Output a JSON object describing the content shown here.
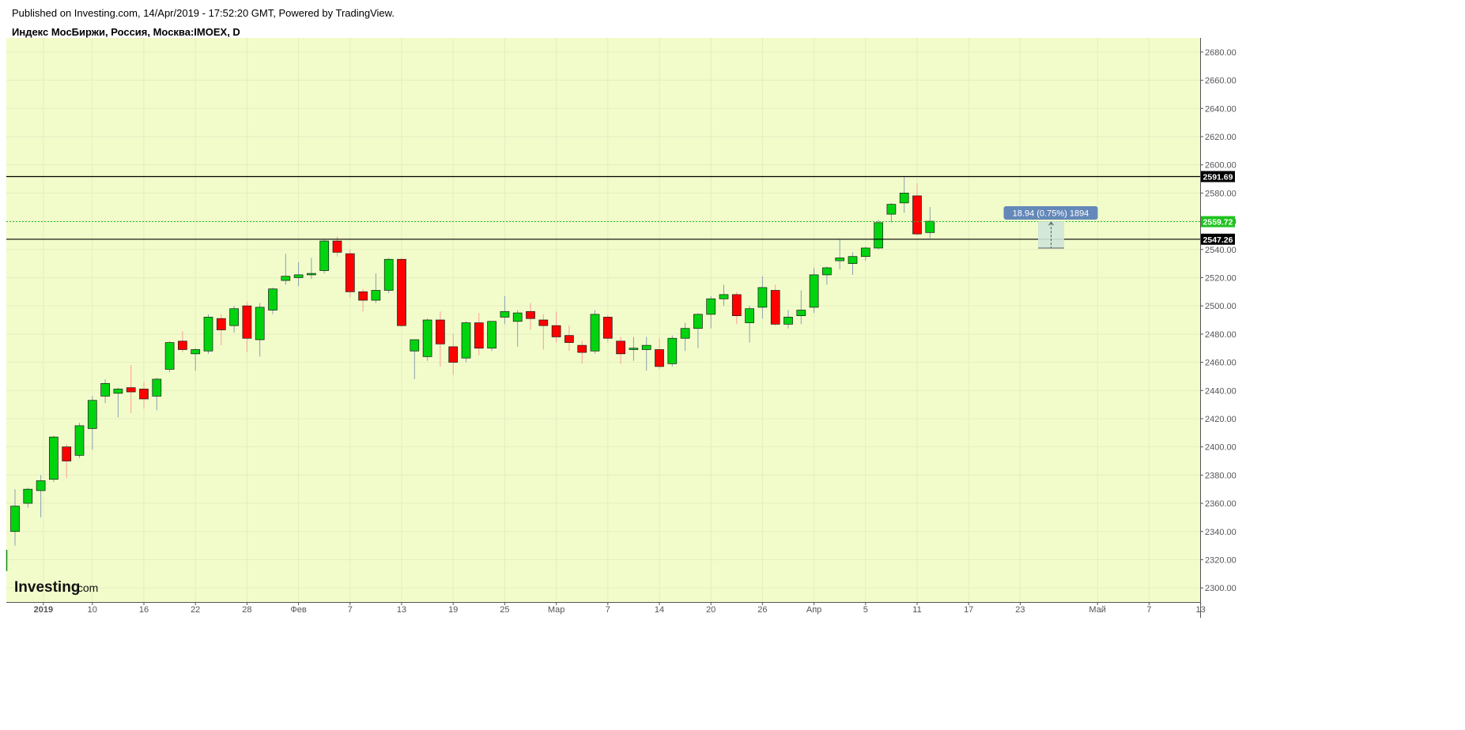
{
  "header": {
    "published": "Published on Investing.com, 14/Apr/2019 - 17:52:20 GMT, Powered by TradingView.",
    "instrument": "Индекс МосБиржи, Россия, Москва:IMOEX, D"
  },
  "logo": {
    "word": "Investing",
    "domain": ".com"
  },
  "colors": {
    "plot_bg": "#f2fccb",
    "up": "#00d40f",
    "down": "#ff0000",
    "wick_up": "#8aa0b0",
    "wick_down": "#ff9a9a",
    "last_price": "#1fc21f",
    "level": "#000000",
    "measure_box": "#cfe6d8",
    "measure_label": "#6488b8"
  },
  "chart_data": {
    "type": "candlestick",
    "ylim": [
      2290,
      2690
    ],
    "y_ticks": [
      2300,
      2320,
      2340,
      2360,
      2380,
      2400,
      2420,
      2440,
      2460,
      2480,
      2500,
      2520,
      2540,
      2560,
      2580,
      2600,
      2620,
      2640,
      2660,
      2680
    ],
    "x_labels": [
      {
        "label": "2019",
        "bar": 2.2,
        "bold": true
      },
      {
        "label": "10",
        "bar": 6
      },
      {
        "label": "16",
        "bar": 10
      },
      {
        "label": "22",
        "bar": 14
      },
      {
        "label": "28",
        "bar": 18
      },
      {
        "label": "Фев",
        "bar": 22
      },
      {
        "label": "7",
        "bar": 26
      },
      {
        "label": "13",
        "bar": 30
      },
      {
        "label": "19",
        "bar": 34
      },
      {
        "label": "25",
        "bar": 38
      },
      {
        "label": "Мар",
        "bar": 42
      },
      {
        "label": "7",
        "bar": 46
      },
      {
        "label": "14",
        "bar": 50
      },
      {
        "label": "20",
        "bar": 54
      },
      {
        "label": "26",
        "bar": 58
      },
      {
        "label": "Апр",
        "bar": 62
      },
      {
        "label": "5",
        "bar": 66
      },
      {
        "label": "11",
        "bar": 70
      },
      {
        "label": "17",
        "bar": 74
      },
      {
        "label": "23",
        "bar": 78
      },
      {
        "label": "Май",
        "bar": 84
      },
      {
        "label": "7",
        "bar": 88
      },
      {
        "label": "13",
        "bar": 92
      }
    ],
    "candles": [
      [
        2340,
        2370,
        2330,
        2358
      ],
      [
        2360,
        2371,
        2357,
        2370
      ],
      [
        2369,
        2380,
        2350,
        2376
      ],
      [
        2377,
        2408,
        2375,
        2407
      ],
      [
        2400,
        2402,
        2378,
        2390
      ],
      [
        2394,
        2417,
        2392,
        2415
      ],
      [
        2413,
        2436,
        2398,
        2433
      ],
      [
        2436,
        2448,
        2431,
        2445
      ],
      [
        2438,
        2442,
        2421,
        2441
      ],
      [
        2442,
        2458,
        2424,
        2439
      ],
      [
        2441,
        2446,
        2427,
        2434
      ],
      [
        2436,
        2449,
        2426,
        2448
      ],
      [
        2455,
        2475,
        2453,
        2474
      ],
      [
        2475,
        2482,
        2467,
        2469
      ],
      [
        2466,
        2470,
        2454,
        2469
      ],
      [
        2468,
        2494,
        2466,
        2492
      ],
      [
        2491,
        2494,
        2472,
        2483
      ],
      [
        2486,
        2500,
        2481,
        2498
      ],
      [
        2500,
        2503,
        2467,
        2477
      ],
      [
        2476,
        2502,
        2464,
        2499
      ],
      [
        2497,
        2513,
        2494,
        2512
      ],
      [
        2518,
        2537,
        2515,
        2521
      ],
      [
        2520,
        2531,
        2514,
        2522
      ],
      [
        2522,
        2534,
        2519,
        2523
      ],
      [
        2525,
        2547,
        2523,
        2546
      ],
      [
        2546,
        2549,
        2535,
        2538
      ],
      [
        2537,
        2540,
        2506,
        2510
      ],
      [
        2510,
        2512,
        2496,
        2504
      ],
      [
        2504,
        2523,
        2502,
        2511
      ],
      [
        2511,
        2534,
        2509,
        2533
      ],
      [
        2533,
        2534,
        2485,
        2486
      ],
      [
        2468,
        2476,
        2448,
        2476
      ],
      [
        2464,
        2491,
        2461,
        2490
      ],
      [
        2490,
        2496,
        2457,
        2473
      ],
      [
        2471,
        2480,
        2451,
        2460
      ],
      [
        2463,
        2489,
        2460,
        2488
      ],
      [
        2488,
        2495,
        2465,
        2470
      ],
      [
        2470,
        2489,
        2468,
        2489
      ],
      [
        2492,
        2507,
        2487,
        2496
      ],
      [
        2489,
        2497,
        2471,
        2495
      ],
      [
        2496,
        2502,
        2483,
        2491
      ],
      [
        2490,
        2494,
        2469,
        2486
      ],
      [
        2486,
        2496,
        2474,
        2478
      ],
      [
        2479,
        2486,
        2468,
        2474
      ],
      [
        2472,
        2475,
        2459,
        2467
      ],
      [
        2468,
        2497,
        2466,
        2494
      ],
      [
        2492,
        2494,
        2474,
        2477
      ],
      [
        2475,
        2478,
        2459,
        2466
      ],
      [
        2469,
        2478,
        2461,
        2470
      ],
      [
        2469,
        2478,
        2454,
        2472
      ],
      [
        2469,
        2477,
        2455,
        2457
      ],
      [
        2459,
        2479,
        2457,
        2477
      ],
      [
        2477,
        2488,
        2468,
        2484
      ],
      [
        2484,
        2495,
        2470,
        2494
      ],
      [
        2494,
        2507,
        2484,
        2505
      ],
      [
        2505,
        2515,
        2500,
        2508
      ],
      [
        2508,
        2510,
        2487,
        2493
      ],
      [
        2488,
        2500,
        2474,
        2498
      ],
      [
        2499,
        2521,
        2491,
        2513
      ],
      [
        2511,
        2515,
        2486,
        2487
      ],
      [
        2487,
        2497,
        2484,
        2492
      ],
      [
        2493,
        2511,
        2487,
        2497
      ],
      [
        2499,
        2527,
        2495,
        2522
      ],
      [
        2522,
        2528,
        2515,
        2527
      ],
      [
        2532,
        2547,
        2526,
        2534
      ],
      [
        2530,
        2538,
        2522,
        2535
      ],
      [
        2535,
        2542,
        2532,
        2541
      ],
      [
        2541,
        2561,
        2540,
        2559
      ],
      [
        2565,
        2573,
        2559,
        2572
      ],
      [
        2573,
        2592,
        2566,
        2580
      ],
      [
        2578,
        2587,
        2550,
        2551
      ],
      [
        2552,
        2570,
        2548,
        2560
      ]
    ],
    "levels": [
      {
        "value": 2591.69,
        "label": "2591.69"
      },
      {
        "value": 2547.26,
        "label": "2547.26"
      }
    ],
    "last_price": {
      "value": 2559.72,
      "label": "2559.72"
    },
    "measure": {
      "label": "18.94 (0.75%) 1894",
      "from": 2541,
      "to": 2559.94
    }
  }
}
